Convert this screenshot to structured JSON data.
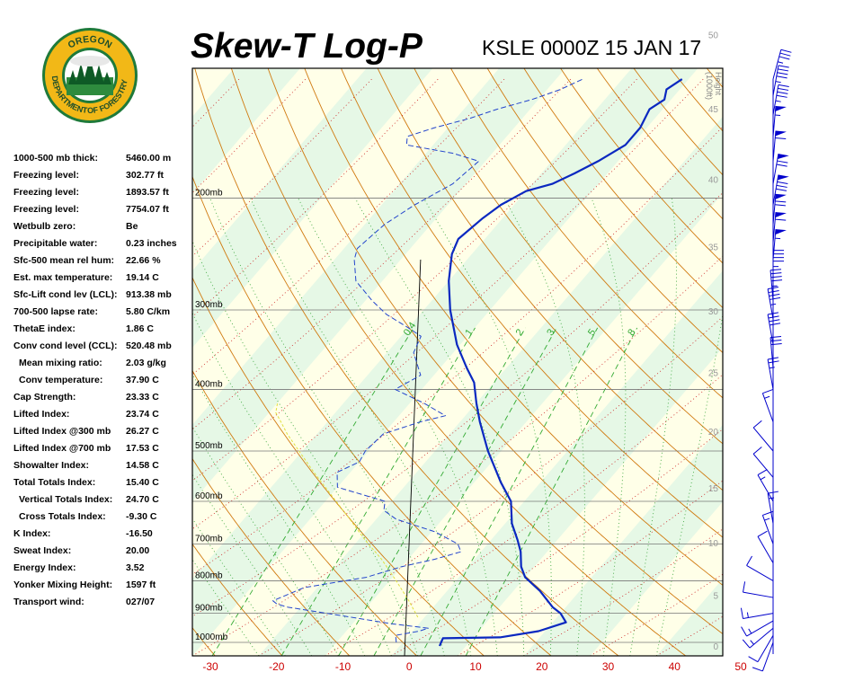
{
  "title": "Skew-T Log-P",
  "station": "KSLE 0000Z 15 JAN 17",
  "logo": {
    "line1": "OREGON",
    "line2": "DEPARTMENT",
    "line3": "OF FORESTRY"
  },
  "indices": [
    {
      "label": "1000-500 mb thick:",
      "value": "5460.00 m"
    },
    {
      "label": "Freezing level:",
      "value": "302.77 ft"
    },
    {
      "label": "Freezing level:",
      "value": "1893.57 ft"
    },
    {
      "label": "Freezing level:",
      "value": "7754.07 ft"
    },
    {
      "label": "Wetbulb zero:",
      "value": "Be"
    },
    {
      "label": "Precipitable water:",
      "value": "0.23 inches"
    },
    {
      "label": "Sfc-500 mean rel hum:",
      "value": "22.66 %"
    },
    {
      "label": "Est. max temperature:",
      "value": "19.14 C"
    },
    {
      "label": "Sfc-Lift cond lev (LCL):",
      "value": "913.38 mb"
    },
    {
      "label": "700-500 lapse rate:",
      "value": "5.80 C/km"
    },
    {
      "label": "ThetaE index:",
      "value": "1.86 C"
    },
    {
      "label": "Conv cond level (CCL):",
      "value": "520.48 mb"
    },
    {
      "label": "Mean mixing ratio:",
      "value": "2.03 g/kg",
      "indent": true
    },
    {
      "label": "Conv temperature:",
      "value": "37.90 C",
      "indent": true
    },
    {
      "label": "Cap Strength:",
      "value": "23.33 C"
    },
    {
      "label": "Lifted Index:",
      "value": "23.74 C"
    },
    {
      "label": "Lifted Index @300 mb",
      "value": "26.27 C"
    },
    {
      "label": "Lifted Index @700 mb",
      "value": "17.53 C"
    },
    {
      "label": "Showalter Index:",
      "value": "14.58 C"
    },
    {
      "label": "Total Totals Index:",
      "value": "15.40 C"
    },
    {
      "label": "Vertical Totals Index:",
      "value": "24.70 C",
      "indent": true
    },
    {
      "label": "Cross Totals Index:",
      "value": "-9.30 C",
      "indent": true
    },
    {
      "label": "K Index:",
      "value": "-16.50"
    },
    {
      "label": "Sweat Index:",
      "value": "20.00"
    },
    {
      "label": "Energy Index:",
      "value": "3.52"
    },
    {
      "label": "Yonker Mixing Height:",
      "value": "1597 ft"
    },
    {
      "label": "Transport wind:",
      "value": "027/07"
    }
  ],
  "chart_data": {
    "type": "line",
    "xlim": [
      -30,
      50
    ],
    "ylim_mb": [
      1050,
      125
    ],
    "x_ticks": [
      "-30",
      "-20",
      "-10",
      "0",
      "10",
      "20",
      "30",
      "40",
      "50"
    ],
    "pressure_levels": [
      {
        "p": 200,
        "label": "200mb"
      },
      {
        "p": 300,
        "label": "300mb"
      },
      {
        "p": 400,
        "label": "400mb"
      },
      {
        "p": 500,
        "label": "500mb"
      },
      {
        "p": 600,
        "label": "600mb"
      },
      {
        "p": 700,
        "label": "700mb"
      },
      {
        "p": 800,
        "label": "800mb"
      },
      {
        "p": 900,
        "label": "900mb"
      },
      {
        "p": 1000,
        "label": "1000mb"
      }
    ],
    "height_axis_title": [
      "Height",
      "(1000ft)"
    ],
    "height_ticks": [
      {
        "h": 0,
        "label": "0"
      },
      {
        "h": 5,
        "label": "5"
      },
      {
        "h": 10,
        "label": "10"
      },
      {
        "h": 15,
        "label": "15"
      },
      {
        "h": 20,
        "label": "20"
      },
      {
        "h": 25,
        "label": "25"
      },
      {
        "h": 30,
        "label": "30"
      },
      {
        "h": 35,
        "label": "35"
      },
      {
        "h": 40,
        "label": "40"
      },
      {
        "h": 45,
        "label": "45"
      },
      {
        "h": 50,
        "label": "50"
      }
    ],
    "mixing_ratio_labels": [
      "0.4",
      "1",
      "2",
      "3",
      "5",
      "8"
    ],
    "temperature": [
      {
        "p": 1013,
        "t": 6.0
      },
      {
        "p": 985,
        "t": 5.5
      },
      {
        "p": 982,
        "t": 14.0
      },
      {
        "p": 960,
        "t": 19.0
      },
      {
        "p": 930,
        "t": 22.0
      },
      {
        "p": 900,
        "t": 20.0
      },
      {
        "p": 880,
        "t": 18.0
      },
      {
        "p": 830,
        "t": 14.0
      },
      {
        "p": 790,
        "t": 10.0
      },
      {
        "p": 760,
        "t": 8.0
      },
      {
        "p": 720,
        "t": 6.0
      },
      {
        "p": 690,
        "t": 4.0
      },
      {
        "p": 650,
        "t": 1.0
      },
      {
        "p": 600,
        "t": -2.0
      },
      {
        "p": 560,
        "t": -6.0
      },
      {
        "p": 500,
        "t": -12.0
      },
      {
        "p": 450,
        "t": -17.0
      },
      {
        "p": 420,
        "t": -20.0
      },
      {
        "p": 390,
        "t": -23.0
      },
      {
        "p": 370,
        "t": -26.0
      },
      {
        "p": 340,
        "t": -30.5
      },
      {
        "p": 300,
        "t": -36.0
      },
      {
        "p": 270,
        "t": -40.0
      },
      {
        "p": 245,
        "t": -43.0
      },
      {
        "p": 232,
        "t": -44.0
      },
      {
        "p": 215,
        "t": -43.0
      },
      {
        "p": 205,
        "t": -42.0
      },
      {
        "p": 195,
        "t": -40.0
      },
      {
        "p": 190,
        "t": -37.0
      },
      {
        "p": 183,
        "t": -35.0
      },
      {
        "p": 175,
        "t": -33.0
      },
      {
        "p": 165,
        "t": -31.0
      },
      {
        "p": 155,
        "t": -31.0
      },
      {
        "p": 145,
        "t": -32.0
      },
      {
        "p": 140,
        "t": -31.0
      },
      {
        "p": 135,
        "t": -32.0
      },
      {
        "p": 130,
        "t": -31.0
      }
    ],
    "dewpoint": [
      {
        "p": 1000,
        "t": -1.0
      },
      {
        "p": 975,
        "t": -2.0
      },
      {
        "p": 960,
        "t": 1.0
      },
      {
        "p": 950,
        "t": 2.0
      },
      {
        "p": 935,
        "t": -4.0
      },
      {
        "p": 910,
        "t": -12.0
      },
      {
        "p": 880,
        "t": -22.0
      },
      {
        "p": 870,
        "t": -24.0
      },
      {
        "p": 860,
        "t": -25.0
      },
      {
        "p": 820,
        "t": -22.0
      },
      {
        "p": 790,
        "t": -14.0
      },
      {
        "p": 760,
        "t": -10.0
      },
      {
        "p": 740,
        "t": -6.0
      },
      {
        "p": 720,
        "t": -3.0
      },
      {
        "p": 700,
        "t": -4.5
      },
      {
        "p": 670,
        "t": -9.5
      },
      {
        "p": 640,
        "t": -17.0
      },
      {
        "p": 620,
        "t": -20.0
      },
      {
        "p": 600,
        "t": -21.0
      },
      {
        "p": 570,
        "t": -30.0
      },
      {
        "p": 540,
        "t": -32.0
      },
      {
        "p": 520,
        "t": -30.0
      },
      {
        "p": 500,
        "t": -30.5
      },
      {
        "p": 470,
        "t": -30.0
      },
      {
        "p": 450,
        "t": -26.0
      },
      {
        "p": 440,
        "t": -23.0
      },
      {
        "p": 420,
        "t": -28.0
      },
      {
        "p": 400,
        "t": -34.0
      },
      {
        "p": 380,
        "t": -32.0
      },
      {
        "p": 350,
        "t": -36.0
      },
      {
        "p": 330,
        "t": -37.0
      },
      {
        "p": 320,
        "t": -40.0
      },
      {
        "p": 305,
        "t": -45.0
      },
      {
        "p": 290,
        "t": -49.0
      },
      {
        "p": 270,
        "t": -54.0
      },
      {
        "p": 250,
        "t": -57.0
      },
      {
        "p": 240,
        "t": -58.0
      },
      {
        "p": 220,
        "t": -57.0
      },
      {
        "p": 205,
        "t": -55.0
      },
      {
        "p": 190,
        "t": -52.0
      },
      {
        "p": 175,
        "t": -51.0
      },
      {
        "p": 170,
        "t": -56.0
      },
      {
        "p": 165,
        "t": -64.0
      },
      {
        "p": 160,
        "t": -65.0
      },
      {
        "p": 155,
        "t": -62.0
      },
      {
        "p": 150,
        "t": -58.0
      },
      {
        "p": 145,
        "t": -55.0
      },
      {
        "p": 140,
        "t": -51.0
      },
      {
        "p": 135,
        "t": -48.0
      },
      {
        "p": 130,
        "t": -46.0
      }
    ],
    "parcel": [
      {
        "p": 913,
        "t": -1.0
      },
      {
        "p": 860,
        "t": -4.5
      },
      {
        "p": 800,
        "t": -9.0
      },
      {
        "p": 740,
        "t": -14.0
      },
      {
        "p": 690,
        "t": -19.0
      },
      {
        "p": 640,
        "t": -24.0
      },
      {
        "p": 590,
        "t": -29.5
      },
      {
        "p": 540,
        "t": -35.5
      },
      {
        "p": 500,
        "t": -40.5
      },
      {
        "p": 470,
        "t": -44.5
      },
      {
        "p": 450,
        "t": -47.0
      },
      {
        "p": 435,
        "t": -49.0
      },
      {
        "p": 420,
        "t": -50.0
      }
    ],
    "wind_barbs": [
      {
        "p": 1000,
        "dir": 200,
        "spd": 10
      },
      {
        "p": 975,
        "dir": 210,
        "spd": 10
      },
      {
        "p": 950,
        "dir": 230,
        "spd": 15
      },
      {
        "p": 925,
        "dir": 240,
        "spd": 15
      },
      {
        "p": 900,
        "dir": 260,
        "spd": 15
      },
      {
        "p": 850,
        "dir": 280,
        "spd": 10
      },
      {
        "p": 800,
        "dir": 300,
        "spd": 10
      },
      {
        "p": 750,
        "dir": 330,
        "spd": 10
      },
      {
        "p": 700,
        "dir": 340,
        "spd": 15
      },
      {
        "p": 650,
        "dir": 350,
        "spd": 15
      },
      {
        "p": 600,
        "dir": 330,
        "spd": 15
      },
      {
        "p": 550,
        "dir": 320,
        "spd": 10
      },
      {
        "p": 500,
        "dir": 320,
        "spd": 10
      },
      {
        "p": 450,
        "dir": 340,
        "spd": 15
      },
      {
        "p": 400,
        "dir": 350,
        "spd": 25
      },
      {
        "p": 370,
        "dir": 355,
        "spd": 30
      },
      {
        "p": 340,
        "dir": 350,
        "spd": 40
      },
      {
        "p": 310,
        "dir": 350,
        "spd": 45
      },
      {
        "p": 290,
        "dir": 355,
        "spd": 45
      },
      {
        "p": 270,
        "dir": 360,
        "spd": 45
      },
      {
        "p": 250,
        "dir": 5,
        "spd": 55
      },
      {
        "p": 235,
        "dir": 5,
        "spd": 60
      },
      {
        "p": 220,
        "dir": 5,
        "spd": 70
      },
      {
        "p": 205,
        "dir": 10,
        "spd": 80
      },
      {
        "p": 190,
        "dir": 10,
        "spd": 70
      },
      {
        "p": 175,
        "dir": 5,
        "spd": 60
      },
      {
        "p": 160,
        "dir": 5,
        "spd": 55
      },
      {
        "p": 148,
        "dir": 10,
        "spd": 45
      },
      {
        "p": 138,
        "dir": 10,
        "spd": 45
      },
      {
        "p": 130,
        "dir": 15,
        "spd": 35
      }
    ]
  }
}
